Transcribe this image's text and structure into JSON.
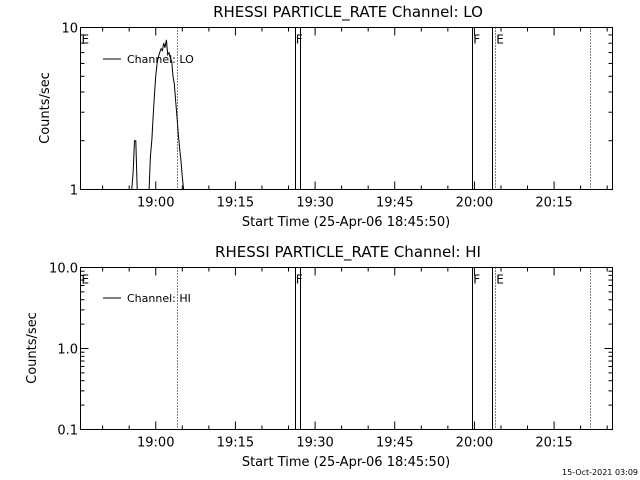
{
  "footer": {
    "timestamp": "15-Oct-2021 03:09"
  },
  "chart_data": [
    {
      "type": "line",
      "title": "RHESSI PARTICLE_RATE Channel: LO",
      "xlabel": "Start Time (25-Apr-06 18:45:50)",
      "ylabel": "Counts/sec",
      "yscale": "log",
      "xlim": [
        "18:45:50",
        "20:26:00"
      ],
      "ylim": [
        1,
        10
      ],
      "ytick_labels": [
        "1",
        "10"
      ],
      "xtick_labels": [
        "19:00",
        "19:15",
        "19:30",
        "19:45",
        "20:00",
        "20:15"
      ],
      "legend": {
        "position": "top-left",
        "entries": [
          "Channel: LO"
        ]
      },
      "series": [
        {
          "name": "Channel: LO",
          "x": [
            "18:55:30",
            "18:55:45",
            "18:56:00",
            "18:56:15",
            "18:56:30",
            "18:58:45",
            "18:59:00",
            "18:59:15",
            "18:59:30",
            "18:59:45",
            "19:00:00",
            "19:00:15",
            "19:00:30",
            "19:00:45",
            "19:01:00",
            "19:01:15",
            "19:01:30",
            "19:01:45",
            "19:02:00",
            "19:02:15",
            "19:02:30",
            "19:02:45",
            "19:03:00",
            "19:03:15",
            "19:03:30",
            "19:03:45",
            "19:04:00",
            "19:04:15",
            "19:04:30",
            "19:04:45",
            "19:05:00",
            "19:05:15",
            "19:05:30",
            "19:05:45"
          ],
          "values": [
            1,
            1.3,
            2,
            2,
            1,
            1,
            1.6,
            2,
            2.8,
            3.8,
            5,
            6,
            6.6,
            7,
            7.4,
            7.2,
            8,
            7.5,
            8.4,
            6.8,
            7,
            6.5,
            6.2,
            5,
            4.5,
            3.5,
            2.8,
            2.2,
            1.8,
            1.5,
            1.2,
            1,
            1,
            1
          ]
        }
      ],
      "annotations": [
        {
          "text": "E",
          "x": "18:45:50"
        },
        {
          "text": "F",
          "x": "19:26:10"
        },
        {
          "text": "F",
          "x": "19:59:35"
        },
        {
          "text": "E",
          "x": "20:03:55"
        }
      ],
      "flag_lines_solid": [
        "19:26:10",
        "19:27:10",
        "19:59:35",
        "20:03:20"
      ],
      "flag_lines_dotted": [
        "19:04:00",
        "20:03:55",
        "20:21:50"
      ]
    },
    {
      "type": "line",
      "title": "RHESSI PARTICLE_RATE Channel: HI",
      "xlabel": "Start Time (25-Apr-06 18:45:50)",
      "ylabel": "Counts/sec",
      "yscale": "log",
      "xlim": [
        "18:45:50",
        "20:26:00"
      ],
      "ylim": [
        0.1,
        10
      ],
      "ytick_labels": [
        "0.1",
        "1.0",
        "10.0"
      ],
      "xtick_labels": [
        "19:00",
        "19:15",
        "19:30",
        "19:45",
        "20:00",
        "20:15"
      ],
      "legend": {
        "position": "top-left",
        "entries": [
          "Channel: HI"
        ]
      },
      "series": [
        {
          "name": "Channel: HI",
          "x": [],
          "values": []
        }
      ],
      "annotations": [
        {
          "text": "E",
          "x": "18:45:50"
        },
        {
          "text": "F",
          "x": "19:26:10"
        },
        {
          "text": "F",
          "x": "19:59:35"
        },
        {
          "text": "E",
          "x": "20:03:55"
        }
      ],
      "flag_lines_solid": [
        "19:26:10",
        "19:27:10",
        "19:59:35",
        "20:03:20"
      ],
      "flag_lines_dotted": [
        "19:04:00",
        "20:03:55",
        "20:21:50"
      ]
    }
  ]
}
